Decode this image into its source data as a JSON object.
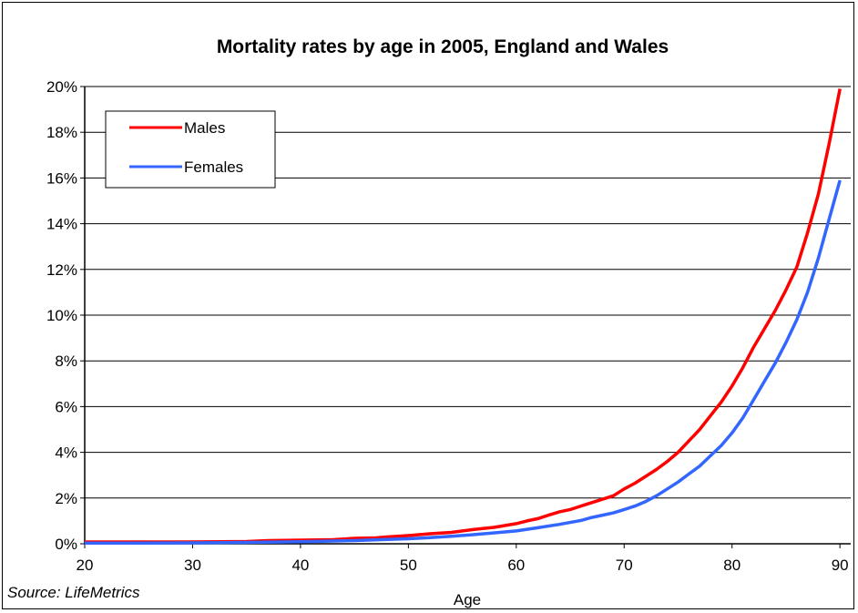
{
  "chart_data": {
    "type": "line",
    "title": "Mortality rates by age in 2005, England and Wales",
    "xlabel": "Age",
    "ylabel": "",
    "xlim": [
      20,
      91
    ],
    "ylim": [
      0,
      20
    ],
    "x_ticks": [
      20,
      30,
      40,
      50,
      60,
      70,
      80,
      90
    ],
    "y_ticks": [
      0,
      2,
      4,
      6,
      8,
      10,
      12,
      14,
      16,
      18,
      20
    ],
    "y_tick_labels": [
      "0%",
      "2%",
      "4%",
      "6%",
      "8%",
      "10%",
      "12%",
      "14%",
      "16%",
      "18%",
      "20%"
    ],
    "grid": "horizontal",
    "legend_position": "top-left",
    "source": "Source: LifeMetrics",
    "series": [
      {
        "name": "Males",
        "color": "#ff0000",
        "points": [
          [
            20,
            0.08
          ],
          [
            25,
            0.08
          ],
          [
            30,
            0.08
          ],
          [
            35,
            0.1
          ],
          [
            37,
            0.14
          ],
          [
            40,
            0.16
          ],
          [
            43,
            0.18
          ],
          [
            45,
            0.24
          ],
          [
            47,
            0.26
          ],
          [
            48,
            0.3
          ],
          [
            50,
            0.36
          ],
          [
            52,
            0.44
          ],
          [
            54,
            0.5
          ],
          [
            56,
            0.62
          ],
          [
            58,
            0.72
          ],
          [
            60,
            0.88
          ],
          [
            61,
            1.0
          ],
          [
            62,
            1.1
          ],
          [
            63,
            1.25
          ],
          [
            64,
            1.4
          ],
          [
            65,
            1.5
          ],
          [
            66,
            1.65
          ],
          [
            67,
            1.8
          ],
          [
            68,
            1.95
          ],
          [
            69,
            2.1
          ],
          [
            70,
            2.4
          ],
          [
            71,
            2.65
          ],
          [
            72,
            2.95
          ],
          [
            73,
            3.25
          ],
          [
            74,
            3.6
          ],
          [
            75,
            4.0
          ],
          [
            76,
            4.5
          ],
          [
            77,
            5.0
          ],
          [
            78,
            5.6
          ],
          [
            79,
            6.2
          ],
          [
            80,
            6.9
          ],
          [
            81,
            7.7
          ],
          [
            82,
            8.6
          ],
          [
            83,
            9.4
          ],
          [
            84,
            10.2
          ],
          [
            85,
            11.1
          ],
          [
            86,
            12.1
          ],
          [
            87,
            13.6
          ],
          [
            88,
            15.3
          ],
          [
            89,
            17.5
          ],
          [
            90,
            19.9
          ]
        ]
      },
      {
        "name": "Females",
        "color": "#3366ff",
        "points": [
          [
            20,
            0.03
          ],
          [
            25,
            0.03
          ],
          [
            30,
            0.04
          ],
          [
            35,
            0.06
          ],
          [
            40,
            0.09
          ],
          [
            43,
            0.12
          ],
          [
            45,
            0.14
          ],
          [
            48,
            0.19
          ],
          [
            50,
            0.22
          ],
          [
            52,
            0.27
          ],
          [
            54,
            0.33
          ],
          [
            56,
            0.4
          ],
          [
            58,
            0.48
          ],
          [
            60,
            0.56
          ],
          [
            62,
            0.7
          ],
          [
            64,
            0.85
          ],
          [
            66,
            1.02
          ],
          [
            67,
            1.15
          ],
          [
            68,
            1.25
          ],
          [
            69,
            1.35
          ],
          [
            70,
            1.5
          ],
          [
            71,
            1.65
          ],
          [
            72,
            1.85
          ],
          [
            73,
            2.1
          ],
          [
            74,
            2.4
          ],
          [
            75,
            2.7
          ],
          [
            76,
            3.05
          ],
          [
            77,
            3.4
          ],
          [
            78,
            3.85
          ],
          [
            79,
            4.3
          ],
          [
            80,
            4.85
          ],
          [
            81,
            5.5
          ],
          [
            82,
            6.3
          ],
          [
            83,
            7.1
          ],
          [
            84,
            7.9
          ],
          [
            85,
            8.8
          ],
          [
            86,
            9.8
          ],
          [
            87,
            11.0
          ],
          [
            88,
            12.5
          ],
          [
            89,
            14.2
          ],
          [
            90,
            15.9
          ]
        ]
      }
    ]
  }
}
